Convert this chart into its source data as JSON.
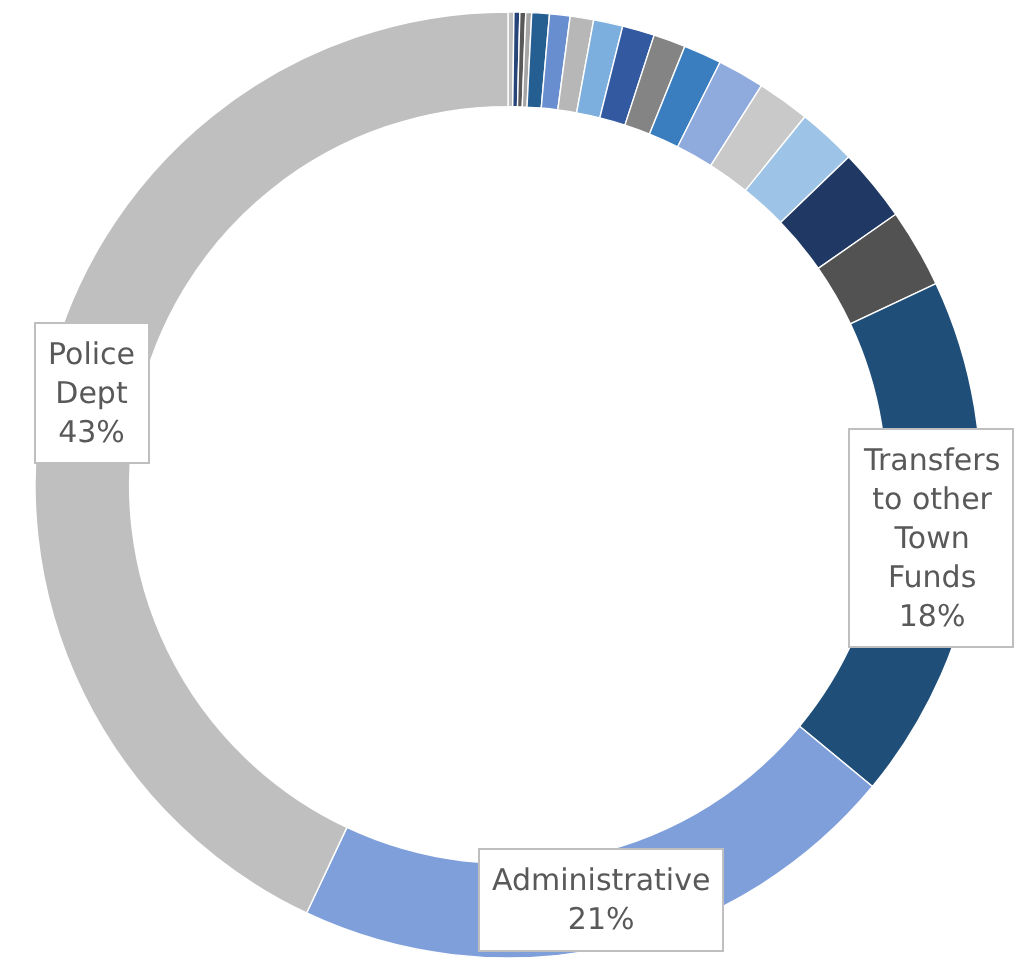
{
  "chart_data": {
    "type": "donut",
    "categories": [
      null,
      null,
      null,
      null,
      null,
      null,
      null,
      null,
      null,
      null,
      null,
      null,
      null,
      null,
      null,
      null,
      "Transfers to other Town Funds",
      "Administrative",
      "Police Dept"
    ],
    "values": [
      0.2,
      0.2,
      0.2,
      0.2,
      0.6,
      0.7,
      0.8,
      1.0,
      1.1,
      1.1,
      1.3,
      1.6,
      1.8,
      2.0,
      2.5,
      2.7,
      18,
      21,
      43
    ],
    "value_labels": [
      null,
      null,
      null,
      null,
      null,
      null,
      null,
      null,
      null,
      null,
      null,
      null,
      null,
      null,
      null,
      null,
      "18%",
      "21%",
      "43%"
    ],
    "colors": [
      "#bfbfbf",
      "#264478",
      "#595959",
      "#a5a5a5",
      "#255e91",
      "#698ed0",
      "#b7b7b7",
      "#7cafdd",
      "#335aa1",
      "#848484",
      "#3a7ebf",
      "#8faadc",
      "#c9c9c9",
      "#9dc3e6",
      "#203864",
      "#525252",
      "#1f4e79",
      "#7f9fdb",
      "#bfbfbf"
    ],
    "legend": false
  }
}
